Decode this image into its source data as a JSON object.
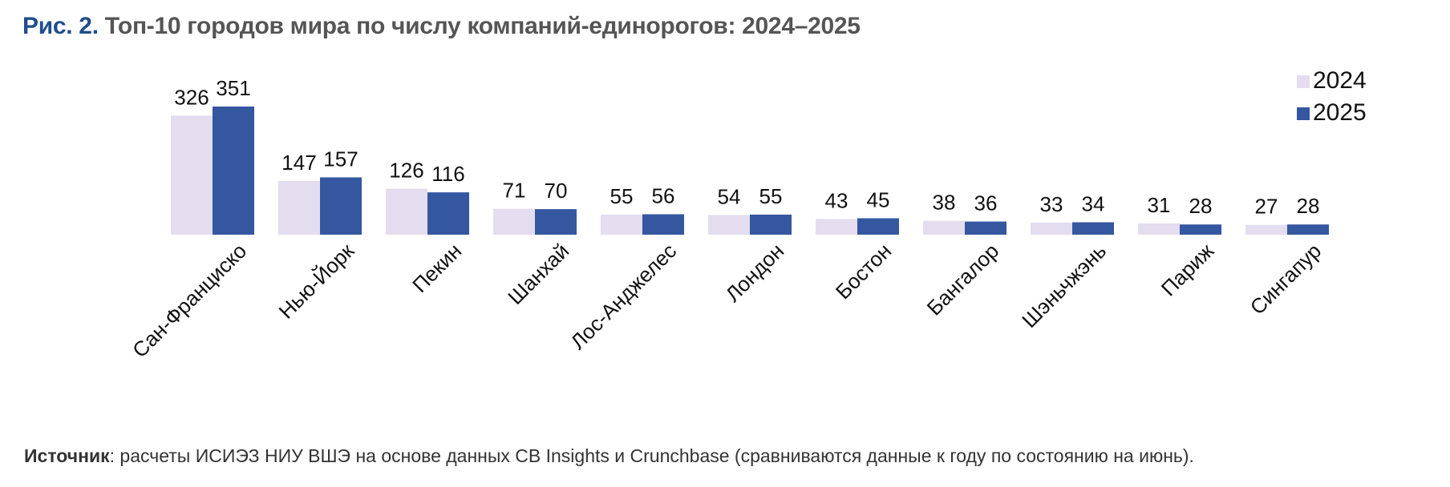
{
  "title": {
    "prefix": "Рис. 2.",
    "text": "Топ-10 городов мира по числу компаний-единорогов: 2024–2025"
  },
  "source": {
    "label": "Источник",
    "text": ": расчеты ИСИЭЗ НИУ ВШЭ на основе данных CB Insights и Crunchbase (сравниваются данные к году по состоянию на июнь)."
  },
  "chart_data": {
    "type": "bar",
    "title": "Топ-10 городов мира по числу компаний-единорогов: 2024–2025",
    "categories": [
      "Сан-Франциско",
      "Нью-Йорк",
      "Пекин",
      "Шанхай",
      "Лос-Анджелес",
      "Лондон",
      "Бостон",
      "Бангалор",
      "Шэньчжэнь",
      "Париж",
      "Сингапур"
    ],
    "series": [
      {
        "name": "2024",
        "color": "#e3ddef",
        "values": [
          326,
          147,
          126,
          71,
          55,
          54,
          43,
          38,
          33,
          31,
          27
        ]
      },
      {
        "name": "2025",
        "color": "#3557a0",
        "values": [
          351,
          157,
          116,
          70,
          56,
          55,
          45,
          36,
          34,
          28,
          28
        ]
      }
    ],
    "ylim": [
      0,
      351
    ],
    "grid": false,
    "legend": "top-right",
    "data_labels": true
  }
}
